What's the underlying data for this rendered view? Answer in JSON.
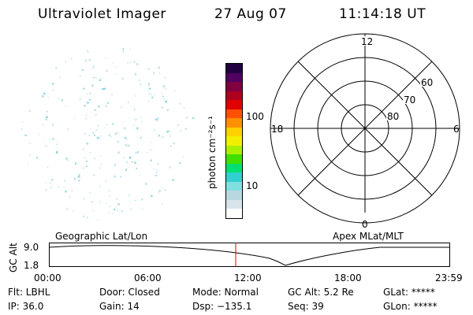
{
  "header": {
    "title": "Ultraviolet Imager",
    "date": "27 Aug 07",
    "time": "11:14:18 UT"
  },
  "colorbar": {
    "unit_label": "photon cm⁻²s⁻¹",
    "ticks": [
      "100",
      "10"
    ],
    "colors": [
      "#ffffff",
      "#d8e4ec",
      "#b8d8e0",
      "#7fe0e0",
      "#30d0d0",
      "#00e070",
      "#40e000",
      "#a8f000",
      "#f0f000",
      "#ffd000",
      "#ff9000",
      "#ff5000",
      "#e00000",
      "#b00020",
      "#800040",
      "#500060",
      "#200040"
    ]
  },
  "polar_plot": {
    "labels": {
      "top": "12",
      "bottom": "0",
      "left": "18",
      "right": "6"
    },
    "lat_labels": [
      "60",
      "70",
      "80"
    ]
  },
  "altitude_plot": {
    "left_label": "Geographic Lat/Lon",
    "right_label": "Apex MLat/MLT",
    "y_axis_label": "GC Alt",
    "y_ticks": [
      "9.0",
      "1.8"
    ],
    "x_ticks": [
      "00:00",
      "06:00",
      "12:00",
      "18:00",
      "23:59"
    ],
    "marker_color": "#e00000"
  },
  "info": {
    "filter": "Flt: LBHL",
    "ip": "IP: 36.0",
    "door": "Door: Closed",
    "gain": "Gain: 14",
    "mode": "Mode: Normal",
    "dsp": "Dsp: −135.1",
    "gc_alt": "GC Alt: 5.2 Re",
    "seq": "Seq: 39",
    "glat": "GLat: *****",
    "glon": "GLon: *****"
  }
}
